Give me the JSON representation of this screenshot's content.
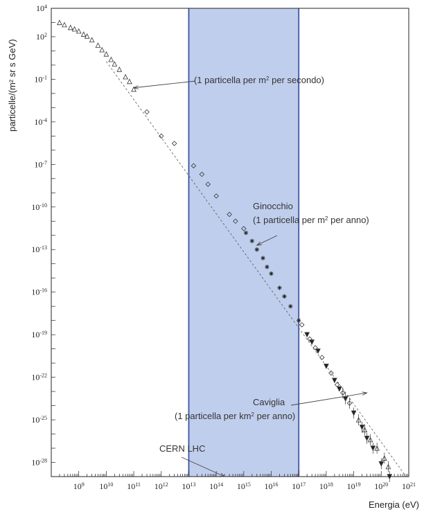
{
  "chart_data": {
    "type": "scatter",
    "xlabel": "Energia (eV)",
    "ylabel": "particelle/(m² sr s GeV)",
    "x_scale": "log",
    "y_scale": "log",
    "xlim": [
      100000000.0,
      1e+21
    ],
    "ylim": [
      1e-29,
      10000.0
    ],
    "x_ticks": [
      "10^9",
      "10^10",
      "10^11",
      "10^12",
      "10^13",
      "10^14",
      "10^15",
      "10^16",
      "10^17",
      "10^18",
      "10^19",
      "10^20",
      "10^21"
    ],
    "y_ticks": [
      "10^4",
      "10^2",
      "10^-1",
      "10^-4",
      "10^-7",
      "10^-10",
      "10^-13",
      "10^-16",
      "10^-19",
      "10^-22",
      "10^-25",
      "10^-28"
    ],
    "grid": false,
    "highlight_band": {
      "x_range": [
        10000000000000.0,
        1e+17
      ],
      "color": "#b5c6ea",
      "edge": "#3e56a3"
    },
    "series": [
      {
        "marker": "triangle-open",
        "points": [
          [
            200000000.0,
            1000
          ],
          [
            300000000.0,
            700
          ],
          [
            500000000.0,
            450
          ],
          [
            700000000.0,
            350
          ],
          [
            1000000000.0,
            250
          ],
          [
            1500000000.0,
            150
          ],
          [
            2000000000.0,
            110
          ],
          [
            3000000000.0,
            60
          ],
          [
            5000000000.0,
            25
          ],
          [
            7000000000.0,
            12
          ],
          [
            10000000000.0,
            6
          ],
          [
            15000000000.0,
            2.5
          ],
          [
            20000000000.0,
            1.2
          ],
          [
            30000000000.0,
            0.5
          ],
          [
            50000000000.0,
            0.15
          ],
          [
            70000000000.0,
            0.07
          ],
          [
            100000000000.0,
            0.02
          ]
        ]
      },
      {
        "marker": "diamond-open",
        "points": [
          [
            300000000000.0,
            0.0005
          ],
          [
            1000000000000.0,
            1e-05
          ],
          [
            3000000000000.0,
            3e-06
          ],
          [
            15000000000000.0,
            8e-08
          ],
          [
            30000000000000.0,
            2e-08
          ],
          [
            50000000000000.0,
            4e-09
          ],
          [
            100000000000000.0,
            6e-10
          ],
          [
            300000000000000.0,
            3e-11
          ],
          [
            500000000000000.0,
            1e-11
          ],
          [
            1000000000000000.0,
            3e-12
          ]
        ]
      },
      {
        "marker": "star",
        "points": [
          [
            1200000000000000.0,
            1.5e-12
          ],
          [
            2000000000000000.0,
            4e-13
          ],
          [
            3000000000000000.0,
            1e-13
          ],
          [
            5000000000000000.0,
            2.5e-14
          ],
          [
            7000000000000000.0,
            6e-15
          ],
          [
            1e+16,
            2e-15
          ],
          [
            2e+16,
            2e-16
          ],
          [
            3e+16,
            5e-17
          ],
          [
            5e+16,
            1e-17
          ],
          [
            1e+17,
            1e-18
          ]
        ]
      },
      {
        "marker": "triangle-filled",
        "points": [
          [
            2e+17,
            1e-19
          ],
          [
            3e+17,
            3e-20
          ],
          [
            5e+17,
            7e-21
          ],
          [
            1e+18,
            6e-22
          ],
          [
            2e+18,
            6e-23
          ],
          [
            3e+18,
            1.5e-23
          ],
          [
            5e+18,
            3e-24
          ],
          [
            1e+19,
            3e-25
          ],
          [
            2e+19,
            3e-26
          ],
          [
            3e+19,
            5e-27
          ],
          [
            5e+19,
            1e-27
          ],
          [
            1e+20,
            8e-29
          ],
          [
            2e+20,
            1e-29
          ]
        ]
      },
      {
        "marker": "diamond-open",
        "points": [
          [
            1.3e+17,
            5e-19
          ],
          [
            2.5e+17,
            5e-20
          ],
          [
            4e+17,
            1.2e-20
          ],
          [
            7e+17,
            2.5e-21
          ],
          [
            1.5e+18,
            2e-22
          ],
          [
            2.5e+18,
            3e-23
          ],
          [
            4e+18,
            8e-24
          ],
          [
            7e+18,
            1.5e-24
          ]
        ]
      },
      {
        "marker": "triangle-open",
        "points": [
          [
            1.5e+19,
            1e-25
          ],
          [
            2.5e+19,
            2e-26
          ],
          [
            4e+19,
            4e-27
          ],
          [
            7e+19,
            1e-27
          ],
          [
            1.3e+20,
            2e-28
          ],
          [
            1.8e+20,
            5e-29
          ]
        ]
      }
    ],
    "fit_line": [
      [
        10000000000.0,
        1.8
      ],
      [
        8e+20,
        1e-29
      ]
    ],
    "annotations": [
      {
        "lines": [
          "(1 particella per m^2 per secondo)"
        ],
        "point": [
          100000000000.0,
          0.025
        ]
      },
      {
        "lines": [
          "Ginocchio",
          "(1 particella per m^2 per anno)"
        ],
        "point": [
          3000000000000000.0,
          2e-13
        ]
      },
      {
        "lines": [
          "Caviglia",
          "(1 particella per km^2 per anno)"
        ],
        "point": [
          3e+19,
          8e-24
        ]
      },
      {
        "lines": [
          "CERN LHC"
        ],
        "point": [
          200000000000000.0,
          1e-29
        ]
      }
    ]
  }
}
